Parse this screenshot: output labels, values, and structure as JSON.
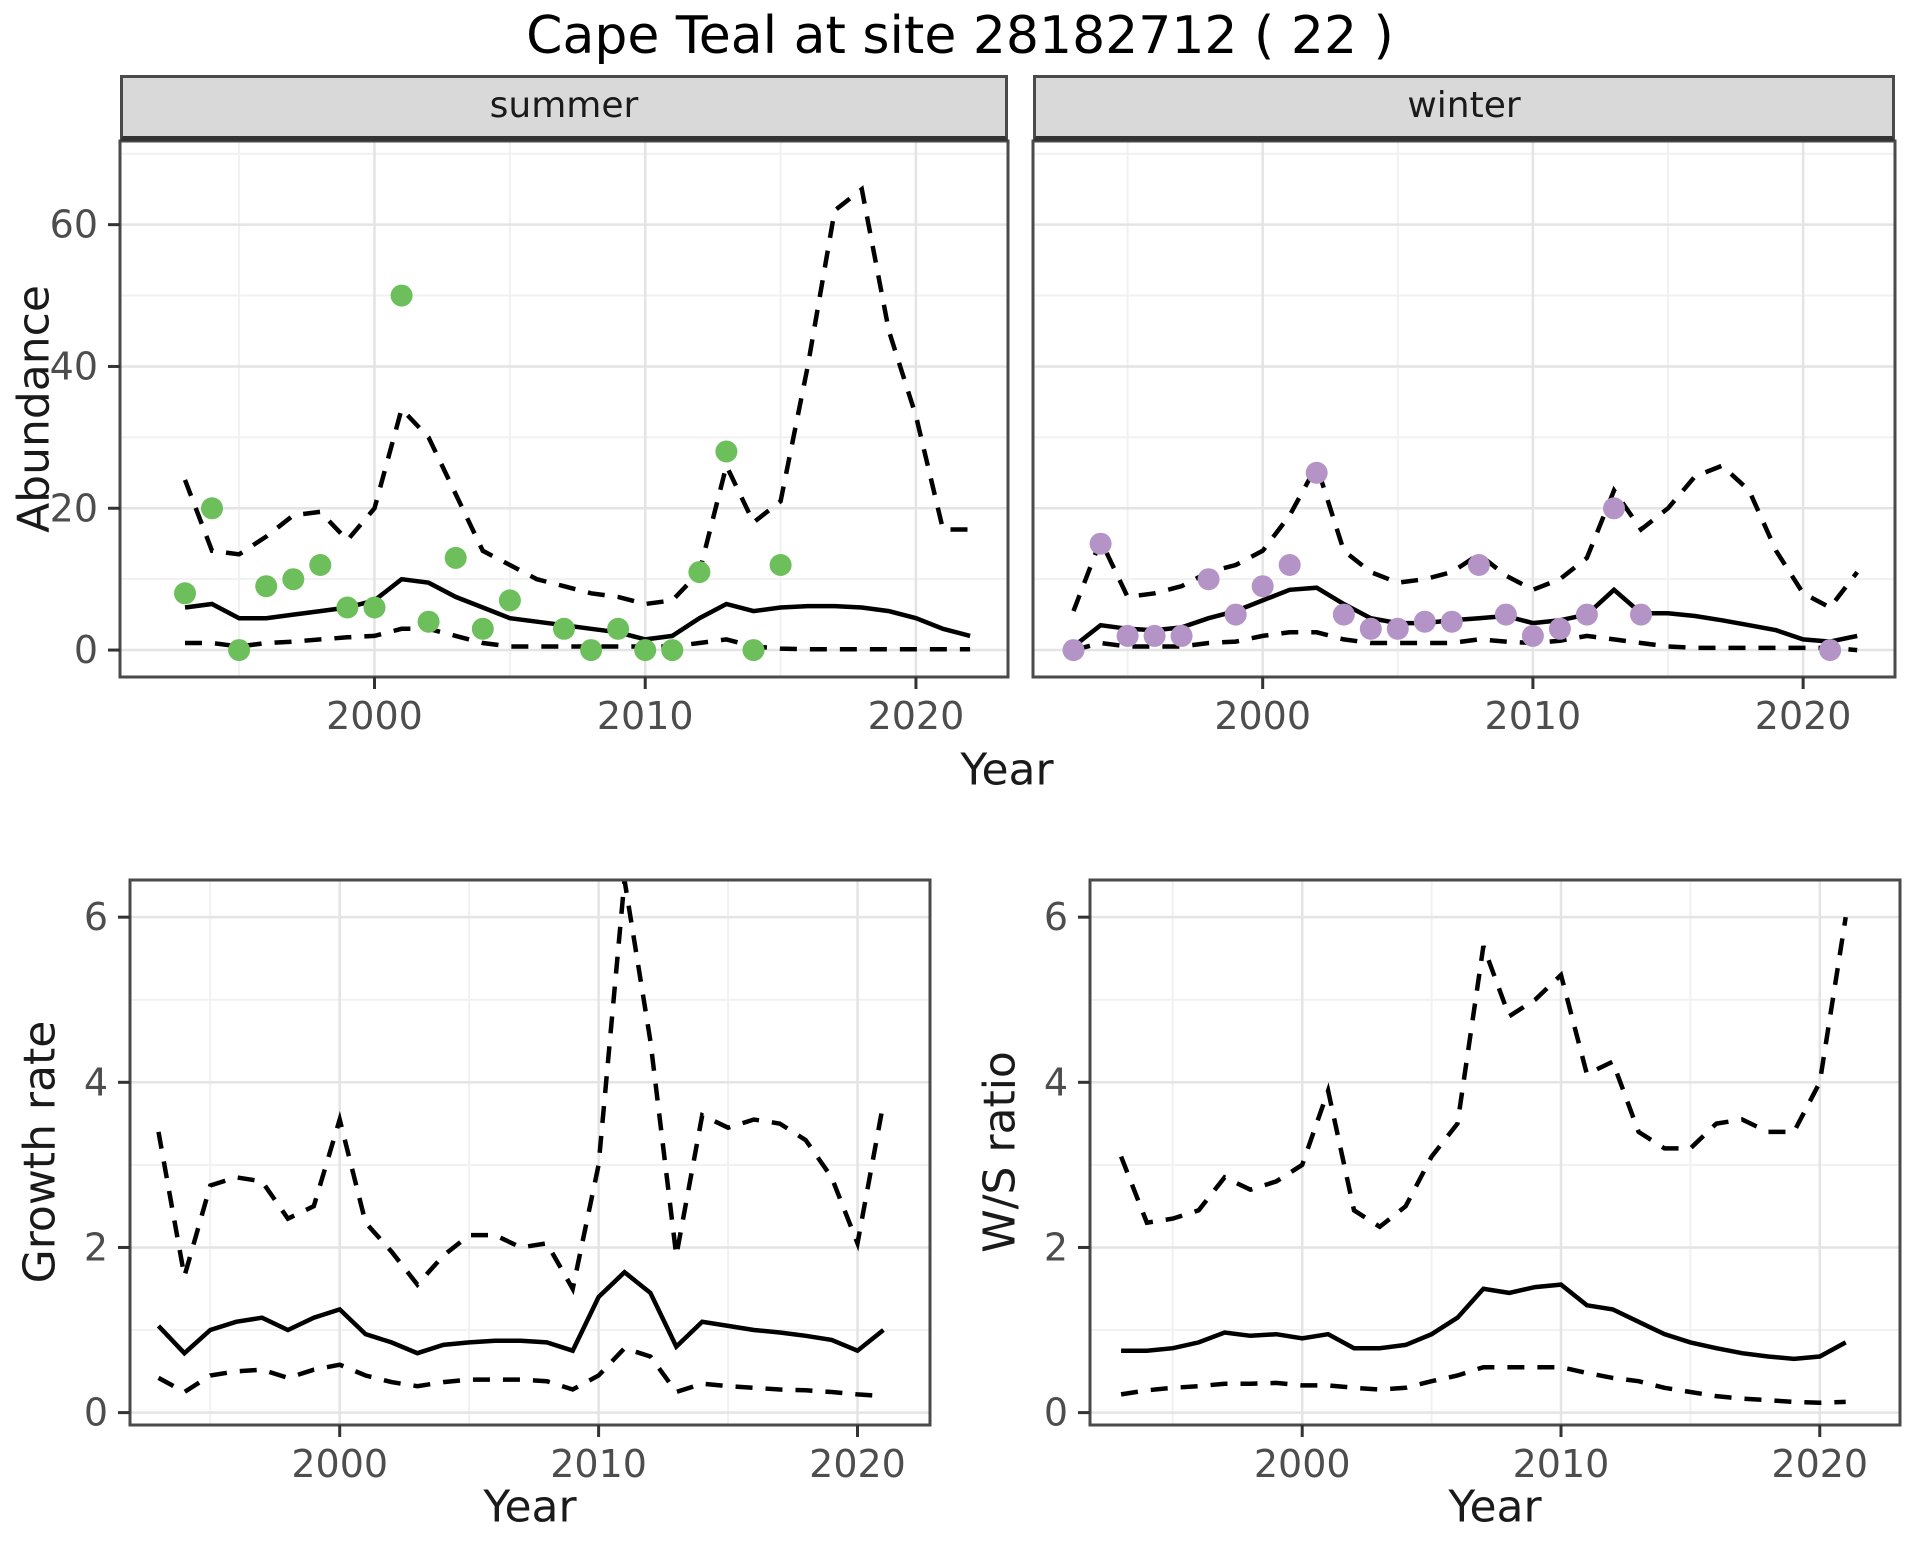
{
  "title": "Cape Teal at site 28182712 ( 22 )",
  "facets": {
    "summer": "summer",
    "winter": "winter"
  },
  "axis_labels": {
    "abundance": "Abundance",
    "year_top": "Year",
    "growth_rate": "Growth rate",
    "ws_ratio": "W/S ratio",
    "year_bottom_left": "Year",
    "year_bottom_right": "Year"
  },
  "colors": {
    "summer_points": "#6cbf5a",
    "winter_points": "#b494c6",
    "line": "#000000",
    "grid_major": "#e4e4e4",
    "grid_minor": "#f1f1f1",
    "panel_border": "#4a4a4a",
    "strip_bg": "#d9d9d9",
    "tick_text": "#4d4d4d"
  },
  "chart_data": [
    {
      "id": "abundance_summer",
      "type": "line",
      "facet": "summer",
      "title": "",
      "xlabel": "Year",
      "ylabel": "Abundance",
      "xlim": [
        1990.6,
        2023.4
      ],
      "ylim": [
        -3.8,
        71.8
      ],
      "xticks": [
        2000,
        2010,
        2020
      ],
      "yticks": [
        0,
        20,
        40,
        60
      ],
      "xminor": [
        1995,
        2005,
        2015
      ],
      "yminor": [
        10,
        30,
        50,
        70
      ],
      "show_ylabels": true,
      "series": [
        {
          "name": "observed_counts",
          "style": "points",
          "color": "#6cbf5a",
          "x": [
            1993,
            1994,
            1995,
            1996,
            1997,
            1998,
            1999,
            2000,
            2001,
            2002,
            2003,
            2004,
            2005,
            2007,
            2008,
            2009,
            2010,
            2011,
            2012,
            2013,
            2014,
            2015
          ],
          "y": [
            8,
            20,
            0,
            9,
            10,
            12,
            6,
            6,
            50,
            4,
            13,
            3,
            7,
            3,
            0,
            3,
            0,
            0,
            11,
            28,
            0,
            12
          ]
        },
        {
          "name": "fitted_abundance",
          "style": "solid",
          "color": "#000000",
          "x": [
            1993,
            1994,
            1995,
            1996,
            1997,
            1998,
            1999,
            2000,
            2001,
            2002,
            2003,
            2004,
            2005,
            2006,
            2007,
            2008,
            2009,
            2010,
            2011,
            2012,
            2013,
            2014,
            2015,
            2016,
            2017,
            2018,
            2019,
            2020,
            2021,
            2022
          ],
          "y": [
            6,
            6.5,
            4.5,
            4.5,
            5,
            5.5,
            6,
            7,
            10,
            9.5,
            7.5,
            6,
            4.5,
            4,
            3.5,
            3,
            2.5,
            1.5,
            2,
            4.5,
            6.5,
            5.5,
            6,
            6.2,
            6.2,
            6,
            5.5,
            4.5,
            3,
            2
          ]
        },
        {
          "name": "upper_ci",
          "style": "dashed",
          "color": "#000000",
          "x": [
            1993,
            1994,
            1995,
            1996,
            1997,
            1998,
            1999,
            2000,
            2001,
            2002,
            2003,
            2004,
            2005,
            2006,
            2007,
            2008,
            2009,
            2010,
            2011,
            2012,
            2013,
            2014,
            2015,
            2016,
            2017,
            2018,
            2019,
            2020,
            2021,
            2022
          ],
          "y": [
            24,
            14,
            13.5,
            16,
            19,
            19.5,
            15.5,
            20,
            34,
            30,
            22,
            14,
            12,
            10,
            9,
            8,
            7.5,
            6.5,
            7,
            11,
            26,
            18,
            21,
            40,
            62,
            65,
            45,
            33,
            17,
            17
          ]
        },
        {
          "name": "lower_ci",
          "style": "dashed",
          "color": "#000000",
          "x": [
            1993,
            1994,
            1995,
            1996,
            1997,
            1998,
            1999,
            2000,
            2001,
            2002,
            2003,
            2004,
            2005,
            2006,
            2007,
            2008,
            2009,
            2010,
            2011,
            2012,
            2013,
            2014,
            2015,
            2016,
            2017,
            2018,
            2019,
            2020,
            2021,
            2022
          ],
          "y": [
            1,
            1,
            0.5,
            1,
            1.2,
            1.5,
            1.8,
            2,
            3,
            3,
            2,
            1,
            0.5,
            0.5,
            0.5,
            0.5,
            0.5,
            0.5,
            0.5,
            1,
            1.5,
            0.5,
            0.2,
            0.1,
            0.1,
            0.1,
            0.1,
            0.1,
            0.1,
            0.1
          ]
        }
      ]
    },
    {
      "id": "abundance_winter",
      "type": "line",
      "facet": "winter",
      "title": "",
      "xlabel": "Year",
      "ylabel": "Abundance",
      "xlim": [
        1991.5,
        2023.4
      ],
      "ylim": [
        -3.8,
        71.8
      ],
      "xticks": [
        2000,
        2010,
        2020
      ],
      "yticks": [
        0,
        20,
        40,
        60
      ],
      "xminor": [
        1995,
        2005,
        2015
      ],
      "yminor": [
        10,
        30,
        50,
        70
      ],
      "show_ylabels": false,
      "series": [
        {
          "name": "observed_counts",
          "style": "points",
          "color": "#b494c6",
          "x": [
            1993,
            1994,
            1995,
            1996,
            1997,
            1998,
            1999,
            2000,
            2001,
            2002,
            2003,
            2004,
            2005,
            2006,
            2007,
            2008,
            2009,
            2010,
            2011,
            2012,
            2013,
            2014,
            2021
          ],
          "y": [
            0,
            15,
            2,
            2,
            2,
            10,
            5,
            9,
            12,
            25,
            5,
            3,
            3,
            4,
            4,
            12,
            5,
            2,
            3,
            5,
            20,
            5,
            0
          ]
        },
        {
          "name": "fitted_abundance",
          "style": "solid",
          "color": "#000000",
          "x": [
            1993,
            1994,
            1995,
            1996,
            1997,
            1998,
            1999,
            2000,
            2001,
            2002,
            2003,
            2004,
            2005,
            2006,
            2007,
            2008,
            2009,
            2010,
            2011,
            2012,
            2013,
            2014,
            2015,
            2016,
            2017,
            2018,
            2019,
            2020,
            2021,
            2022
          ],
          "y": [
            0.5,
            3.5,
            3,
            2.8,
            3.2,
            4.5,
            5.5,
            7,
            8.5,
            8.8,
            6.5,
            4.5,
            3.8,
            3.8,
            4.2,
            4.5,
            4.8,
            3.8,
            4.2,
            5,
            8.5,
            5.2,
            5.2,
            4.8,
            4.2,
            3.5,
            2.8,
            1.5,
            1.2,
            2
          ]
        },
        {
          "name": "upper_ci",
          "style": "dashed",
          "color": "#000000",
          "x": [
            1993,
            1994,
            1995,
            1996,
            1997,
            1998,
            1999,
            2000,
            2001,
            2002,
            2003,
            2004,
            2005,
            2006,
            2007,
            2008,
            2009,
            2010,
            2011,
            2012,
            2013,
            2014,
            2015,
            2016,
            2017,
            2018,
            2019,
            2020,
            2021,
            2022
          ],
          "y": [
            5.5,
            15.5,
            7.5,
            8,
            9,
            11,
            12,
            14,
            19,
            26,
            14,
            11,
            9.5,
            10,
            11,
            13.5,
            10.5,
            8.5,
            10,
            13,
            22.5,
            17,
            20,
            24.5,
            26,
            22.5,
            14,
            8,
            6,
            11
          ]
        },
        {
          "name": "lower_ci",
          "style": "dashed",
          "color": "#000000",
          "x": [
            1993,
            1994,
            1995,
            1996,
            1997,
            1998,
            1999,
            2000,
            2001,
            2002,
            2003,
            2004,
            2005,
            2006,
            2007,
            2008,
            2009,
            2010,
            2011,
            2012,
            2013,
            2014,
            2015,
            2016,
            2017,
            2018,
            2019,
            2020,
            2021,
            2022
          ],
          "y": [
            0,
            1,
            0.5,
            0.5,
            0.5,
            1,
            1.2,
            2,
            2.5,
            2.5,
            1.5,
            1,
            1,
            1,
            1,
            1.5,
            1.2,
            1,
            1.3,
            2,
            1.5,
            1,
            0.5,
            0.3,
            0.3,
            0.3,
            0.3,
            0.3,
            0.3,
            0
          ]
        }
      ]
    },
    {
      "id": "growth_rate",
      "type": "line",
      "facet": "",
      "title": "",
      "xlabel": "Year",
      "ylabel": "Growth rate",
      "xlim": [
        1991.9,
        2022.8
      ],
      "ylim": [
        -0.15,
        6.45
      ],
      "xticks": [
        2000,
        2010,
        2020
      ],
      "yticks": [
        0,
        2,
        4,
        6
      ],
      "xminor": [
        1995,
        2005,
        2015
      ],
      "yminor": [
        1,
        3,
        5
      ],
      "show_ylabels": true,
      "series": [
        {
          "name": "fitted_growth_rate",
          "style": "solid",
          "color": "#000000",
          "x": [
            1993,
            1994,
            1995,
            1996,
            1997,
            1998,
            1999,
            2000,
            2001,
            2002,
            2003,
            2004,
            2005,
            2006,
            2007,
            2008,
            2009,
            2010,
            2011,
            2012,
            2013,
            2014,
            2015,
            2016,
            2017,
            2018,
            2019,
            2020,
            2021
          ],
          "y": [
            1.05,
            0.72,
            1.0,
            1.1,
            1.15,
            1.0,
            1.15,
            1.25,
            0.95,
            0.85,
            0.72,
            0.82,
            0.85,
            0.87,
            0.87,
            0.85,
            0.75,
            1.4,
            1.7,
            1.45,
            0.8,
            1.1,
            1.05,
            1.0,
            0.97,
            0.93,
            0.88,
            0.75,
            1.0
          ]
        },
        {
          "name": "upper_ci",
          "style": "dashed",
          "color": "#000000",
          "x": [
            1993,
            1994,
            1995,
            1996,
            1997,
            1998,
            1999,
            2000,
            2001,
            2002,
            2003,
            2004,
            2005,
            2006,
            2007,
            2008,
            2009,
            2010,
            2011,
            2012,
            2013,
            2014,
            2015,
            2016,
            2017,
            2018,
            2019,
            2020,
            2021
          ],
          "y": [
            3.4,
            1.65,
            2.75,
            2.85,
            2.8,
            2.35,
            2.5,
            3.55,
            2.3,
            1.95,
            1.55,
            1.9,
            2.15,
            2.15,
            2.0,
            2.05,
            1.5,
            3.0,
            6.45,
            4.5,
            1.9,
            3.6,
            3.45,
            3.55,
            3.5,
            3.3,
            2.85,
            2.05,
            3.75
          ]
        },
        {
          "name": "lower_ci",
          "style": "dashed",
          "color": "#000000",
          "x": [
            1993,
            1994,
            1995,
            1996,
            1997,
            1998,
            1999,
            2000,
            2001,
            2002,
            2003,
            2004,
            2005,
            2006,
            2007,
            2008,
            2009,
            2010,
            2011,
            2012,
            2013,
            2014,
            2015,
            2016,
            2017,
            2018,
            2019,
            2020,
            2021
          ],
          "y": [
            0.42,
            0.25,
            0.45,
            0.5,
            0.52,
            0.42,
            0.52,
            0.58,
            0.45,
            0.37,
            0.32,
            0.37,
            0.4,
            0.4,
            0.4,
            0.38,
            0.28,
            0.45,
            0.78,
            0.68,
            0.25,
            0.35,
            0.32,
            0.3,
            0.28,
            0.27,
            0.25,
            0.22,
            0.2
          ]
        }
      ]
    },
    {
      "id": "ws_ratio",
      "type": "line",
      "facet": "",
      "title": "",
      "xlabel": "Year",
      "ylabel": "W/S ratio",
      "xlim": [
        1991.8,
        2023.1
      ],
      "ylim": [
        -0.15,
        6.45
      ],
      "xticks": [
        2000,
        2010,
        2020
      ],
      "yticks": [
        0,
        2,
        4,
        6
      ],
      "xminor": [
        1995,
        2005,
        2015
      ],
      "yminor": [
        1,
        3,
        5
      ],
      "show_ylabels": true,
      "series": [
        {
          "name": "fitted_ws_ratio",
          "style": "solid",
          "color": "#000000",
          "x": [
            1993,
            1994,
            1995,
            1996,
            1997,
            1998,
            1999,
            2000,
            2001,
            2002,
            2003,
            2004,
            2005,
            2006,
            2007,
            2008,
            2009,
            2010,
            2011,
            2012,
            2013,
            2014,
            2015,
            2016,
            2017,
            2018,
            2019,
            2020,
            2021
          ],
          "y": [
            0.75,
            0.75,
            0.78,
            0.85,
            0.97,
            0.93,
            0.95,
            0.9,
            0.95,
            0.78,
            0.78,
            0.82,
            0.95,
            1.15,
            1.5,
            1.45,
            1.52,
            1.55,
            1.3,
            1.25,
            1.1,
            0.95,
            0.85,
            0.78,
            0.72,
            0.68,
            0.65,
            0.68,
            0.85
          ]
        },
        {
          "name": "upper_ci",
          "style": "dashed",
          "color": "#000000",
          "x": [
            1993,
            1994,
            1995,
            1996,
            1997,
            1998,
            1999,
            2000,
            2001,
            2002,
            2003,
            2004,
            2005,
            2006,
            2007,
            2008,
            2009,
            2010,
            2011,
            2012,
            2013,
            2014,
            2015,
            2016,
            2017,
            2018,
            2019,
            2020,
            2021
          ],
          "y": [
            3.1,
            2.3,
            2.35,
            2.45,
            2.85,
            2.7,
            2.8,
            3.0,
            3.9,
            2.45,
            2.25,
            2.5,
            3.1,
            3.5,
            5.65,
            4.8,
            5.0,
            5.3,
            4.1,
            4.25,
            3.4,
            3.2,
            3.2,
            3.5,
            3.55,
            3.4,
            3.4,
            4.0,
            6.0
          ]
        },
        {
          "name": "lower_ci",
          "style": "dashed",
          "color": "#000000",
          "x": [
            1993,
            1994,
            1995,
            1996,
            1997,
            1998,
            1999,
            2000,
            2001,
            2002,
            2003,
            2004,
            2005,
            2006,
            2007,
            2008,
            2009,
            2010,
            2011,
            2012,
            2013,
            2014,
            2015,
            2016,
            2017,
            2018,
            2019,
            2020,
            2021
          ],
          "y": [
            0.22,
            0.27,
            0.3,
            0.32,
            0.35,
            0.35,
            0.36,
            0.33,
            0.33,
            0.3,
            0.28,
            0.3,
            0.38,
            0.45,
            0.55,
            0.55,
            0.55,
            0.55,
            0.48,
            0.42,
            0.38,
            0.3,
            0.25,
            0.2,
            0.17,
            0.15,
            0.13,
            0.12,
            0.13
          ]
        }
      ]
    }
  ]
}
